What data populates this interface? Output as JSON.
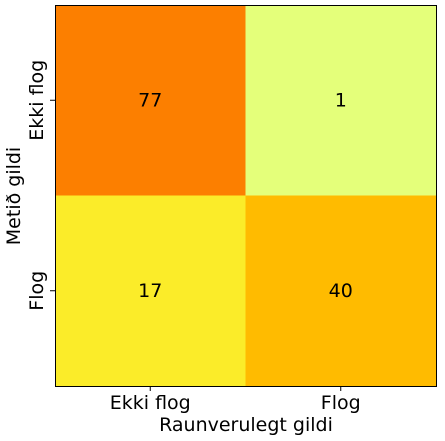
{
  "chart_data": {
    "type": "heatmap",
    "title": "",
    "xlabel": "Raunverulegt gildi",
    "ylabel": "Metið gildi",
    "x_categories": [
      "Ekki flog",
      "Flog"
    ],
    "y_categories": [
      "Ekki flog",
      "Flog"
    ],
    "values": [
      [
        77,
        1
      ],
      [
        17,
        40
      ]
    ],
    "colormap": "Wistia",
    "vmin": 1,
    "vmax": 77,
    "grid": false,
    "legend": "none"
  }
}
